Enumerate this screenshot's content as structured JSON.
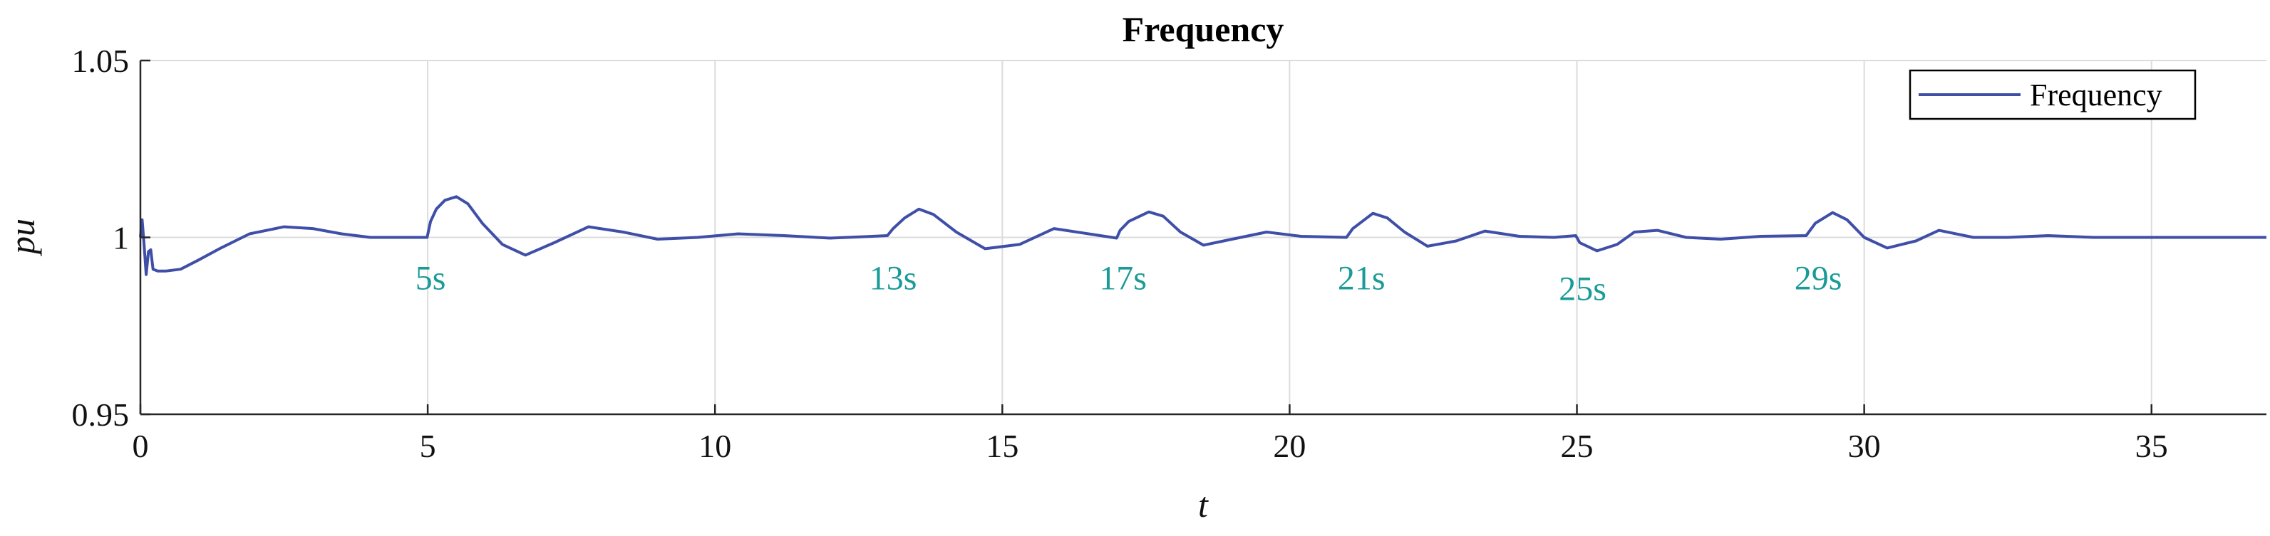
{
  "colors": {
    "series": "#3f4fa8",
    "annotation": "#1a9b98",
    "grid": "#dcdcdc",
    "axis": "#262626"
  },
  "chart_data": {
    "type": "line",
    "title": "Frequency",
    "xlabel": "t",
    "ylabel": "pu",
    "xlim": [
      0,
      37
    ],
    "ylim": [
      0.95,
      1.05
    ],
    "xticks": [
      0,
      5,
      10,
      15,
      20,
      25,
      30,
      35
    ],
    "xtick_labels": [
      "0",
      "5",
      "10",
      "15",
      "20",
      "25",
      "30",
      "35"
    ],
    "yticks": [
      0.95,
      1,
      1.05
    ],
    "ytick_labels": [
      "0.95",
      "1",
      "1.05"
    ],
    "grid": true,
    "legend_position": "top-right",
    "series": [
      {
        "name": "Frequency",
        "x": [
          0,
          0.03,
          0.06,
          0.1,
          0.14,
          0.18,
          0.22,
          0.3,
          0.45,
          0.7,
          1.0,
          1.4,
          1.9,
          2.5,
          3.0,
          3.5,
          4.0,
          4.5,
          4.99,
          5.05,
          5.15,
          5.3,
          5.5,
          5.7,
          5.95,
          6.3,
          6.7,
          7.2,
          7.8,
          8.4,
          9.0,
          9.7,
          10.4,
          11.2,
          12.0,
          12.6,
          13.0,
          13.1,
          13.3,
          13.55,
          13.8,
          14.2,
          14.7,
          15.3,
          15.9,
          16.5,
          16.99,
          17.05,
          17.2,
          17.55,
          17.8,
          18.1,
          18.5,
          19.0,
          19.6,
          20.2,
          20.99,
          21.1,
          21.45,
          21.7,
          22.0,
          22.4,
          22.9,
          23.4,
          24.0,
          24.6,
          24.98,
          25.05,
          25.35,
          25.7,
          26.0,
          26.4,
          26.9,
          27.5,
          28.2,
          28.99,
          29.15,
          29.45,
          29.7,
          30.0,
          30.4,
          30.9,
          31.3,
          31.9,
          32.5,
          33.2,
          34.0,
          35.0,
          36.0,
          37.0
        ],
        "y": [
          1.0,
          1.005,
          0.999,
          0.9895,
          0.996,
          0.9965,
          0.991,
          0.9905,
          0.9905,
          0.991,
          0.9935,
          0.997,
          1.001,
          1.003,
          1.0025,
          1.001,
          1.0,
          1.0,
          1.0,
          1.0045,
          1.008,
          1.0105,
          1.0115,
          1.0095,
          1.004,
          0.998,
          0.995,
          0.9985,
          1.003,
          1.0015,
          0.9995,
          1.0,
          1.001,
          1.0005,
          0.9998,
          1.0002,
          1.0005,
          1.0025,
          1.0055,
          1.008,
          1.0065,
          1.0015,
          0.9968,
          0.998,
          1.0025,
          1.001,
          0.9998,
          1.002,
          1.0045,
          1.0072,
          1.006,
          1.0015,
          0.9978,
          0.9995,
          1.0015,
          1.0003,
          1.0,
          1.0025,
          1.0068,
          1.0055,
          1.0015,
          0.9975,
          0.999,
          1.0018,
          1.0003,
          1.0,
          1.0005,
          0.9985,
          0.9962,
          0.998,
          1.0015,
          1.002,
          1.0,
          0.9995,
          1.0003,
          1.0005,
          1.004,
          1.007,
          1.005,
          1.0,
          0.997,
          0.999,
          1.002,
          1.0,
          1.0,
          1.0005,
          1.0,
          1.0,
          1.0,
          1.0
        ]
      }
    ],
    "annotations": [
      {
        "text": "5s",
        "x": 5.05,
        "y": 0.9885
      },
      {
        "text": "13s",
        "x": 13.1,
        "y": 0.9885
      },
      {
        "text": "17s",
        "x": 17.1,
        "y": 0.9885
      },
      {
        "text": "21s",
        "x": 21.25,
        "y": 0.9885
      },
      {
        "text": "25s",
        "x": 25.1,
        "y": 0.9855
      },
      {
        "text": "29s",
        "x": 29.2,
        "y": 0.9885
      }
    ]
  }
}
